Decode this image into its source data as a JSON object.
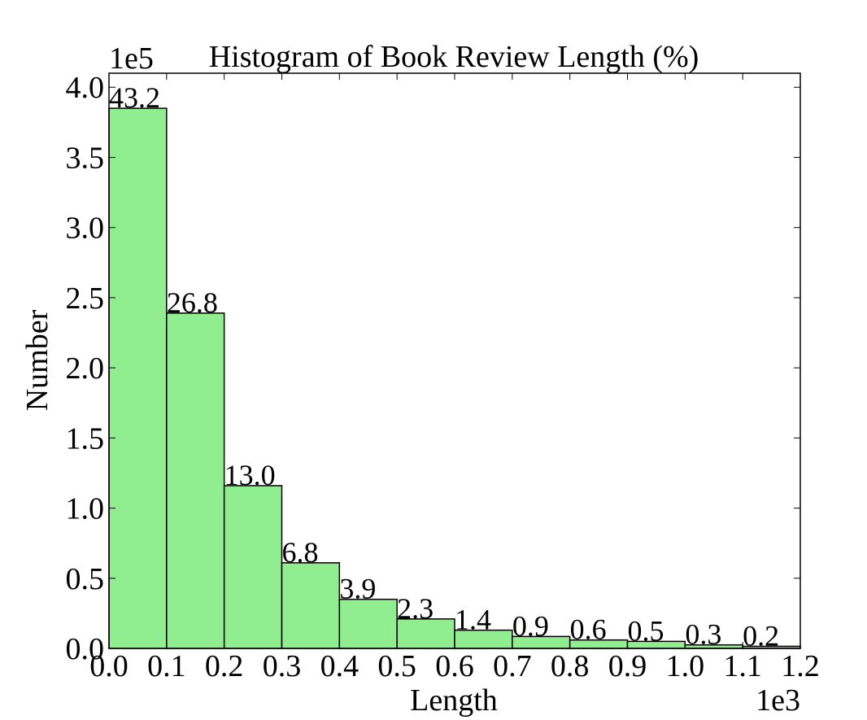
{
  "chart_data": {
    "type": "bar",
    "title": "Histogram of Book Review Length (%)",
    "xlabel": "Length",
    "ylabel": "Number",
    "x_offset_label": "1e3",
    "y_offset_label": "1e5",
    "xlim": [
      0.0,
      1.2
    ],
    "ylim": [
      0.0,
      4.1
    ],
    "x_ticks": [
      "0.0",
      "0.1",
      "0.2",
      "0.3",
      "0.4",
      "0.5",
      "0.6",
      "0.7",
      "0.8",
      "0.9",
      "1.0",
      "1.1",
      "1.2"
    ],
    "y_ticks": [
      "0.0",
      "0.5",
      "1.0",
      "1.5",
      "2.0",
      "2.5",
      "3.0",
      "3.5",
      "4.0"
    ],
    "bin_edges": [
      0.0,
      0.1,
      0.2,
      0.3,
      0.4,
      0.5,
      0.6,
      0.7,
      0.8,
      0.9,
      1.0,
      1.1,
      1.2
    ],
    "values": [
      3.85,
      2.39,
      1.16,
      0.61,
      0.35,
      0.21,
      0.13,
      0.085,
      0.06,
      0.05,
      0.025,
      0.015
    ],
    "bar_labels": [
      "43.2",
      "26.8",
      "13.0",
      "6.8",
      "3.9",
      "2.3",
      "1.4",
      "0.9",
      "0.6",
      "0.5",
      "0.3",
      "0.2"
    ],
    "bar_color": "#90ee90",
    "edge_color": "#000000",
    "grid": false
  }
}
